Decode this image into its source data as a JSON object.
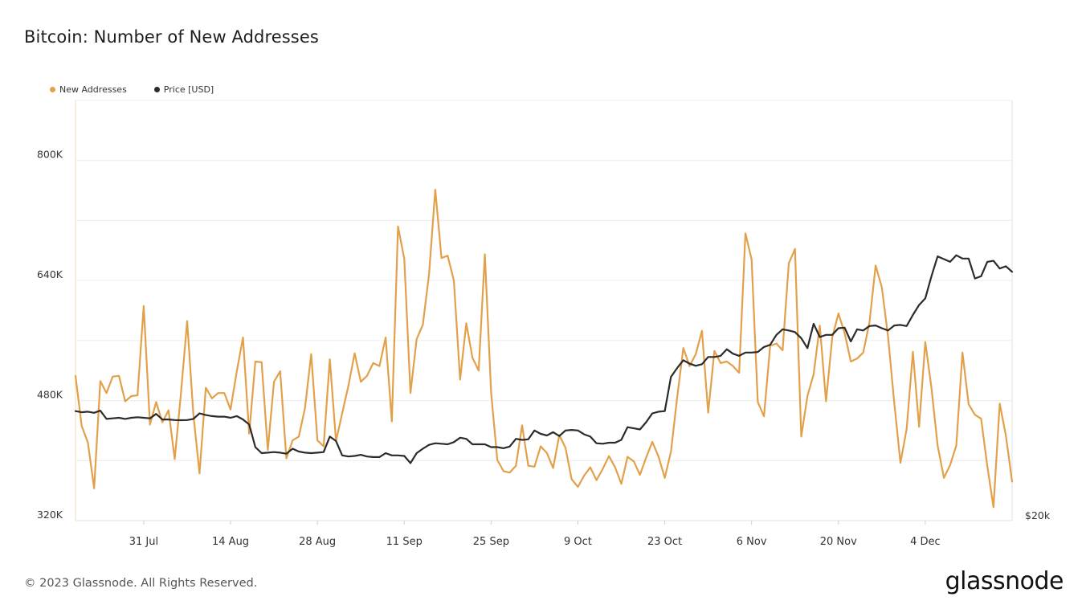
{
  "page": {
    "title": "Bitcoin: Number of New Addresses",
    "footer": "© 2023 Glassnode. All Rights Reserved.",
    "brand": "glassnode"
  },
  "colors": {
    "new_addresses": "#e3a04a",
    "price": "#2b2b2b",
    "grid": "#ececec",
    "axis_text": "#333333"
  },
  "chart_data": {
    "type": "line",
    "title": "Bitcoin: Number of New Addresses",
    "x_start_day": "2023-07-20",
    "x_ticks": [
      {
        "label": "31 Jul",
        "day": 11
      },
      {
        "label": "14 Aug",
        "day": 25
      },
      {
        "label": "28 Aug",
        "day": 39
      },
      {
        "label": "11 Sep",
        "day": 53
      },
      {
        "label": "25 Sep",
        "day": 67
      },
      {
        "label": "9 Oct",
        "day": 81
      },
      {
        "label": "23 Oct",
        "day": 95
      },
      {
        "label": "6 Nov",
        "day": 109
      },
      {
        "label": "20 Nov",
        "day": 123
      },
      {
        "label": "4 Dec",
        "day": 137
      }
    ],
    "y_left": {
      "ticks": [
        "320K",
        "480K",
        "640K",
        "800K"
      ],
      "values": [
        320000,
        480000,
        640000,
        800000
      ],
      "min": 320000,
      "max": 880000
    },
    "y_right": {
      "ticks": [
        "$20k"
      ],
      "values": [
        20000
      ]
    },
    "grid": true,
    "legend_position": "top-left",
    "series": [
      {
        "name": "New Addresses",
        "axis": "left",
        "values": [
          513000,
          446000,
          424000,
          363000,
          506000,
          490000,
          512000,
          513000,
          479000,
          486000,
          487000,
          606000,
          448000,
          478000,
          451000,
          467000,
          402000,
          490000,
          586000,
          462000,
          383000,
          497000,
          483000,
          490000,
          490000,
          468000,
          519000,
          564000,
          436000,
          532000,
          531000,
          414000,
          505000,
          519000,
          403000,
          427000,
          432000,
          470000,
          542000,
          427000,
          419000,
          535000,
          426000,
          463000,
          500000,
          543000,
          505000,
          513000,
          530000,
          526000,
          564000,
          452000,
          712000,
          669000,
          490000,
          562000,
          581000,
          648000,
          761000,
          670000,
          673000,
          640000,
          508000,
          583000,
          537000,
          520000,
          675000,
          491000,
          401000,
          386000,
          384000,
          393000,
          447000,
          393000,
          392000,
          419000,
          410000,
          390000,
          434000,
          417000,
          375000,
          365000,
          380000,
          391000,
          374000,
          389000,
          406000,
          391000,
          369000,
          405000,
          399000,
          381000,
          404000,
          425000,
          405000,
          377000,
          412000,
          484000,
          550000,
          526000,
          542000,
          573000,
          464000,
          546000,
          530000,
          532000,
          526000,
          517000,
          703000,
          668000,
          478000,
          459000,
          553000,
          556000,
          547000,
          663000,
          682000,
          432000,
          486000,
          515000,
          580000,
          479000,
          564000,
          596000,
          570000,
          532000,
          536000,
          544000,
          584000,
          660000,
          631000,
          565000,
          477000,
          397000,
          442000,
          545000,
          445000,
          558000,
          497000,
          420000,
          377000,
          394000,
          420000,
          544000,
          475000,
          461000,
          456000,
          393000,
          338000,
          476000,
          433000,
          372000
        ]
      },
      {
        "name": "Price [USD]",
        "axis": "right",
        "values": [
          29900,
          29800,
          29850,
          29750,
          29950,
          29200,
          29250,
          29300,
          29200,
          29300,
          29350,
          29300,
          29250,
          29650,
          29150,
          29150,
          29100,
          29080,
          29100,
          29200,
          29700,
          29550,
          29450,
          29400,
          29400,
          29300,
          29450,
          29150,
          28700,
          26650,
          26100,
          26150,
          26200,
          26150,
          26050,
          26500,
          26250,
          26150,
          26100,
          26150,
          26200,
          27600,
          27200,
          25900,
          25800,
          25850,
          25950,
          25800,
          25750,
          25750,
          26100,
          25900,
          25900,
          25850,
          25200,
          26100,
          26500,
          26850,
          27000,
          26950,
          26900,
          27100,
          27500,
          27400,
          26900,
          26900,
          26900,
          26650,
          26650,
          26550,
          26700,
          27400,
          27300,
          27350,
          28150,
          27850,
          27700,
          28000,
          27650,
          28150,
          28200,
          28150,
          27800,
          27600,
          27000,
          26950,
          27050,
          27050,
          27300,
          28450,
          28350,
          28250,
          28900,
          29700,
          29850,
          29900,
          33000,
          33800,
          34500,
          34200,
          34000,
          34150,
          34800,
          34800,
          34900,
          35500,
          35100,
          34900,
          35200,
          35200,
          35250,
          35700,
          35900,
          36800,
          37300,
          37200,
          37050,
          36500,
          35600,
          37800,
          36600,
          36800,
          36800,
          37400,
          37450,
          36200,
          37300,
          37200,
          37600,
          37650,
          37400,
          37200,
          37650,
          37700,
          37600,
          38600,
          39500,
          40100,
          42100,
          43900,
          43650,
          43400,
          44000,
          43700,
          43700,
          41900,
          42100,
          43400,
          43500,
          42800,
          43000,
          42500
        ]
      }
    ]
  }
}
